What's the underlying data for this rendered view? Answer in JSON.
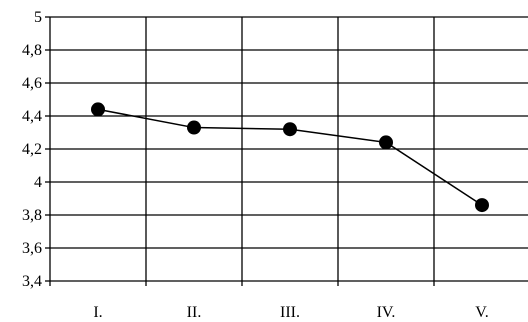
{
  "chart_data": {
    "type": "line",
    "title": "",
    "xlabel": "",
    "ylabel": "",
    "categories": [
      "I.",
      "II.",
      "III.",
      "IV.",
      "V."
    ],
    "series": [
      {
        "values": [
          4.44,
          4.33,
          4.32,
          4.24,
          3.86
        ]
      }
    ],
    "ylim": [
      3.4,
      5
    ],
    "y_ticks": [
      3.4,
      3.6,
      3.8,
      4,
      4.2,
      4.4,
      4.6,
      4.8,
      5
    ],
    "y_tick_labels": [
      "3,4",
      "3,6",
      "3,8",
      "4",
      "4,2",
      "4,4",
      "4,6",
      "4,8",
      "5"
    ],
    "grid": true,
    "legend": "none",
    "colors": {
      "line": "#000000",
      "marker": "#000000",
      "grid": "#000000",
      "background": "#ffffff"
    }
  }
}
